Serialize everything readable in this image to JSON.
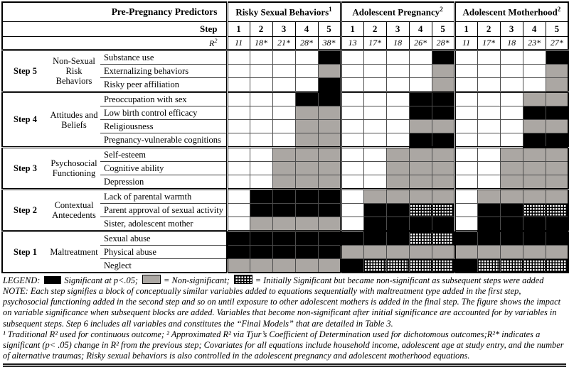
{
  "figure": {
    "header": {
      "predictors_title": "Pre-Pregnancy Predictors",
      "step_label": "Step",
      "r2_base": "R",
      "r2_exp": "2",
      "outcomes": [
        {
          "title": "Risky Sexual Behaviors",
          "sup": "1",
          "steps": [
            "1",
            "2",
            "3",
            "4",
            "5"
          ],
          "r2": [
            "11",
            "18*",
            "21*",
            "28*",
            "38*"
          ]
        },
        {
          "title": "Adolescent Pregnancy",
          "sup": "2",
          "steps": [
            "1",
            "2",
            "3",
            "4",
            "5"
          ],
          "r2": [
            "13",
            "17*",
            "18",
            "26*",
            "28*"
          ]
        },
        {
          "title": "Adolescent Motherhood",
          "sup": "2",
          "steps": [
            "1",
            "2",
            "3",
            "4",
            "5"
          ],
          "r2": [
            "11",
            "17*",
            "18",
            "23*",
            "27*"
          ]
        }
      ]
    },
    "cell_codes": {
      "w": "empty",
      "b": "significant",
      "g": "non-significant",
      "h": "initially-significant-became-non-significant"
    },
    "blocks": [
      {
        "step": "Step 5",
        "category": "Non-Sexual Risk Behaviors",
        "rows": [
          {
            "label": "Substance use",
            "cells": [
              "wwwwb",
              "wwwwb",
              "wwwwb"
            ]
          },
          {
            "label": "Externalizing behaviors",
            "cells": [
              "wwwwg",
              "wwwwg",
              "wwwwg"
            ]
          },
          {
            "label": "Risky peer affiliation",
            "cells": [
              "wwwwb",
              "wwwwg",
              "wwwwg"
            ]
          }
        ]
      },
      {
        "step": "Step 4",
        "category": "Attitudes and Beliefs",
        "rows": [
          {
            "label": "Preoccupation with sex",
            "cells": [
              "wwwbb",
              "wwwbb",
              "wwwgg"
            ]
          },
          {
            "label": "Low birth control efficacy",
            "cells": [
              "wwwgg",
              "wwwbb",
              "wwwbb"
            ]
          },
          {
            "label": "Religiousness",
            "cells": [
              "wwwgg",
              "wwwgg",
              "wwwgg"
            ]
          },
          {
            "label": "Pregnancy-vulnerable cognitions",
            "cells": [
              "wwwgg",
              "wwwbb",
              "wwwbb"
            ]
          }
        ]
      },
      {
        "step": "Step 3",
        "category": "Psychosocial Functioning",
        "rows": [
          {
            "label": "Self-esteem",
            "cells": [
              "wwggg",
              "wwggg",
              "wwggg"
            ]
          },
          {
            "label": "Cognitive ability",
            "cells": [
              "wwggg",
              "wwggg",
              "wwggg"
            ]
          },
          {
            "label": "Depression",
            "cells": [
              "wwggg",
              "wwggg",
              "wwggg"
            ]
          }
        ]
      },
      {
        "step": "Step 2",
        "category": "Contextual Antecedents",
        "rows": [
          {
            "label": "Lack of parental warmth",
            "cells": [
              "wbbbb",
              "wgggg",
              "wgggg"
            ]
          },
          {
            "label": "Parent approval of sexual activity",
            "cells": [
              "wbbbb",
              "wbbhh",
              "wbbhh"
            ]
          },
          {
            "label": "Sister, adolescent mother",
            "cells": [
              "wgggg",
              "wbbbb",
              "wbbbb"
            ]
          }
        ]
      },
      {
        "step": "Step 1",
        "category": "Maltreatment",
        "rows": [
          {
            "label": "Sexual abuse",
            "cells": [
              "bbbbb",
              "bbbhh",
              "bbbbb"
            ]
          },
          {
            "label": "Physical abuse",
            "cells": [
              "bbbbb",
              "ggggg",
              "ggggg"
            ]
          },
          {
            "label": "Neglect",
            "cells": [
              "ggggg",
              "bhhhh",
              "bhhhh"
            ]
          }
        ]
      }
    ]
  },
  "legend": {
    "label": "LEGEND:",
    "items": [
      {
        "swatch": "significant",
        "text": "Significant at p<.05;"
      },
      {
        "swatch": "non-significant",
        "text": "= Non-significant;"
      },
      {
        "swatch": "initially-significant",
        "text": "= Initially Significant but became non-significant as subsequent steps were added"
      }
    ]
  },
  "notes": {
    "note": "NOTE: Each step signifies a block of conceptually similar variables added to equations sequentially with maltreatment type added in the first step, psychosocial functioning added in the second step and so on until exposure to other adolescent mothers is added in the final step. The figure shows the impact on variable significance when subsequent blocks are added. Variables that become non-significant after initial significance are accounted for by variables in subsequent steps. Step 6 includes all variables and constitutes the “Final Models” that are detailed in Table 3.",
    "footnote": "¹ Traditional R² used for continuous outcome; ² Approximated R² via Tjur’s Coefficient of Determination used for dichotomous outcomes;R²* indicates a significant (p< .05) change in R² from the previous step; Covariates for all equations include household income, adolescent age at study entry, and the number of alternative traumas; Risky sexual behaviors is also controlled in the adolescent pregnancy and adolescent motherhood equations."
  },
  "colors": {
    "significant_fill": "#000000",
    "non_significant_fill": "#aba7a3",
    "grid_line": "#4d4d4d"
  }
}
